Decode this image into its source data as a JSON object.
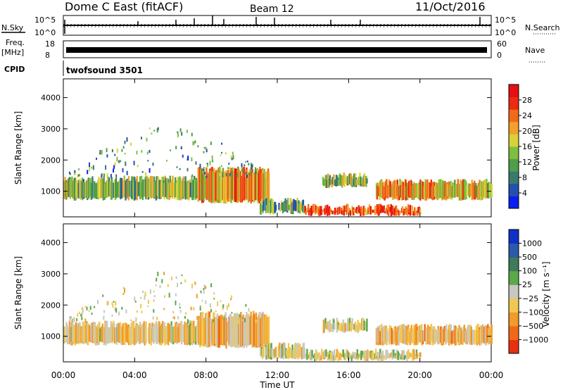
{
  "header": {
    "site": "Dome C East (fitACF)",
    "beam": "Beam 12",
    "date": "11/Oct/2016"
  },
  "top_panels": {
    "nsky": {
      "label": "N.Sky",
      "ticks": [
        "10^5",
        "10^0"
      ]
    },
    "nsearch": {
      "label": "N.Search",
      "ticks": [
        "10^5",
        "10^0"
      ]
    },
    "freq": {
      "label_line1": "Freq.",
      "label_line2": "[MHz]",
      "ticks": [
        "18",
        "8"
      ]
    },
    "nave": {
      "label": "Nave",
      "ticks": [
        "60",
        "0"
      ]
    },
    "cpid": {
      "label": "CPID",
      "value": "twofsound 3501"
    }
  },
  "power_panel": {
    "ylabel": "Slant Range [km]",
    "yticks": [
      "4000",
      "3000",
      "2000",
      "1000"
    ],
    "colorbar_label": "Power [dB]",
    "colorbar_ticks": [
      "28",
      "24",
      "20",
      "16",
      "12",
      "8",
      "4"
    ],
    "colors": [
      "#0a1ef0",
      "#2350b0",
      "#3a7a6e",
      "#4f9e4a",
      "#7fbf3f",
      "#d7d23a",
      "#f2a02a",
      "#f06a1a",
      "#ee2a10",
      "#e61010"
    ]
  },
  "velocity_panel": {
    "ylabel": "Slant Range [km]",
    "yticks": [
      "4000",
      "3000",
      "2000",
      "1000"
    ],
    "colorbar_label": "Velocity [m s⁻¹]",
    "colorbar_ticks": [
      "1000",
      "500",
      "100",
      "25",
      "−25",
      "−100",
      "−500",
      "−1000"
    ],
    "colors": [
      "#1030c8",
      "#2a5aa8",
      "#3f7a5a",
      "#5aa84a",
      "#c8c8c0",
      "#f0c850",
      "#f29a2a",
      "#ef6a18",
      "#e83010"
    ]
  },
  "xaxis": {
    "ticks": [
      "00:00",
      "04:00",
      "08:00",
      "12:00",
      "16:00",
      "20:00",
      "00:00"
    ],
    "label": "Time UT"
  },
  "chart_data": {
    "type": "heatmap",
    "x_range_hours": [
      0,
      24
    ],
    "y_range_km": [
      180,
      4600
    ],
    "power_range_db": [
      0,
      32
    ],
    "velocity_range_ms": [
      -1000,
      1000
    ],
    "echo_bands": [
      {
        "t_start": 0.0,
        "t_end": 11.5,
        "range_low_km": 700,
        "range_high_km": 1500,
        "power_db": 14,
        "velocity_ms": -200
      },
      {
        "t_start": 7.5,
        "t_end": 11.5,
        "range_low_km": 600,
        "range_high_km": 1800,
        "power_db": 22,
        "velocity_ms": -300
      },
      {
        "t_start": 11.0,
        "t_end": 13.5,
        "range_low_km": 250,
        "range_high_km": 800,
        "power_db": 12,
        "velocity_ms": -100
      },
      {
        "t_start": 13.5,
        "t_end": 20.0,
        "range_low_km": 200,
        "range_high_km": 600,
        "power_db": 26,
        "velocity_ms": -80
      },
      {
        "t_start": 14.5,
        "t_end": 17.0,
        "range_low_km": 1100,
        "range_high_km": 1600,
        "power_db": 14,
        "velocity_ms": -150
      },
      {
        "t_start": 17.5,
        "t_end": 24.0,
        "range_low_km": 700,
        "range_high_km": 1400,
        "power_db": 20,
        "velocity_ms": -250
      }
    ]
  }
}
